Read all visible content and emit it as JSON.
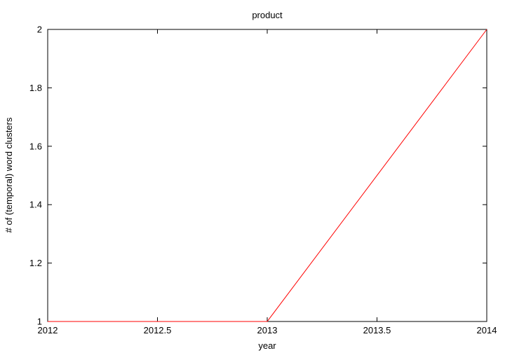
{
  "chart_data": {
    "type": "line",
    "title": "product",
    "xlabel": "year",
    "ylabel": "# of (temporal) word clusters",
    "xlim": [
      2012,
      2014
    ],
    "ylim": [
      1,
      2
    ],
    "xticks": [
      "2012",
      "2012.5",
      "2013",
      "2013.5",
      "2014"
    ],
    "yticks": [
      "1",
      "1.2",
      "1.4",
      "1.6",
      "1.8",
      "2"
    ],
    "grid": false,
    "series": [
      {
        "color": "#ff0000",
        "x": [
          2012,
          2013,
          2014
        ],
        "y": [
          1,
          1,
          2
        ]
      }
    ]
  }
}
